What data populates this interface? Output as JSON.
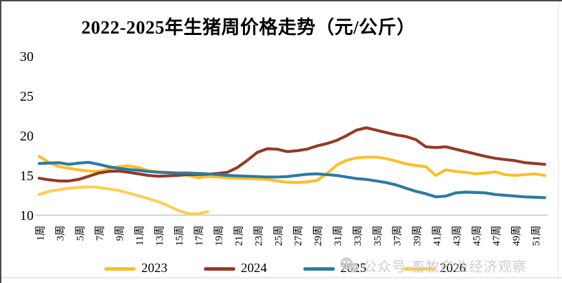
{
  "title": "2022-2025年生猪周价格走势（元/公斤）",
  "watermark": {
    "icon": "wechat-icon",
    "text": "公众号·畜牧产业经济观察"
  },
  "chart_data": {
    "type": "line",
    "title": "2022-2025年生猪周价格走势（元/公斤）",
    "xlabel": "",
    "ylabel": "",
    "ylim": [
      10,
      30
    ],
    "y_ticks": [
      10,
      15,
      20,
      25,
      30
    ],
    "x_weeks": 52,
    "x_tick_labels": [
      "1周",
      "3周",
      "5周",
      "7周",
      "9周",
      "11周",
      "13周",
      "15周",
      "17周",
      "19周",
      "21周",
      "23周",
      "25周",
      "27周",
      "29周",
      "31周",
      "33周",
      "35周",
      "37周",
      "39周",
      "41周",
      "43周",
      "45周",
      "47周",
      "49周",
      "51周"
    ],
    "grid": false,
    "legend_position": "bottom",
    "axis_color": "#d4d4d4",
    "series": [
      {
        "name": "2023",
        "color": "#FDBF2A",
        "values": [
          17.4,
          16.6,
          16.1,
          15.9,
          15.7,
          15.55,
          15.5,
          15.8,
          16.1,
          16.2,
          16.0,
          15.6,
          15.45,
          15.35,
          15.2,
          15.0,
          14.7,
          14.85,
          14.8,
          14.7,
          14.65,
          14.6,
          14.55,
          14.5,
          14.3,
          14.15,
          14.1,
          14.2,
          14.35,
          15.2,
          16.3,
          16.9,
          17.2,
          17.3,
          17.3,
          17.1,
          16.8,
          16.45,
          16.25,
          16.1,
          15.0,
          15.7,
          15.5,
          15.4,
          15.2,
          15.3,
          15.45,
          15.1,
          15.0,
          15.1,
          15.2,
          15.0
        ]
      },
      {
        "name": "2024",
        "color": "#943A26",
        "values": [
          14.65,
          14.45,
          14.3,
          14.3,
          14.5,
          14.9,
          15.3,
          15.5,
          15.55,
          15.4,
          15.2,
          15.0,
          14.9,
          14.95,
          15.0,
          15.1,
          15.1,
          15.15,
          15.25,
          15.4,
          16.0,
          16.9,
          17.9,
          18.35,
          18.3,
          18.0,
          18.1,
          18.3,
          18.7,
          19.0,
          19.4,
          20.0,
          20.7,
          21.0,
          20.7,
          20.4,
          20.1,
          19.9,
          19.5,
          18.6,
          18.5,
          18.6,
          18.3,
          18.0,
          17.7,
          17.4,
          17.15,
          17.0,
          16.85,
          16.6,
          16.5,
          16.4
        ]
      },
      {
        "name": "2025",
        "color": "#2C7BA0",
        "values": [
          16.5,
          16.55,
          16.6,
          16.4,
          16.55,
          16.65,
          16.4,
          16.1,
          15.9,
          15.75,
          15.65,
          15.5,
          15.4,
          15.35,
          15.3,
          15.3,
          15.25,
          15.2,
          15.1,
          15.0,
          14.95,
          14.9,
          14.85,
          14.8,
          14.8,
          14.85,
          15.0,
          15.15,
          15.2,
          15.1,
          15.0,
          14.8,
          14.6,
          14.5,
          14.3,
          14.1,
          13.8,
          13.4,
          13.0,
          12.7,
          12.3,
          12.4,
          12.8,
          12.9,
          12.85,
          12.8,
          12.6,
          12.5,
          12.4,
          12.3,
          12.25,
          12.2
        ]
      },
      {
        "name": "2026",
        "color": "#FFCE54",
        "values": [
          12.6,
          13.0,
          13.2,
          13.4,
          13.5,
          13.55,
          13.5,
          13.3,
          13.1,
          12.8,
          12.45,
          12.1,
          11.7,
          11.2,
          10.6,
          10.2,
          10.15,
          10.45
        ]
      }
    ]
  }
}
